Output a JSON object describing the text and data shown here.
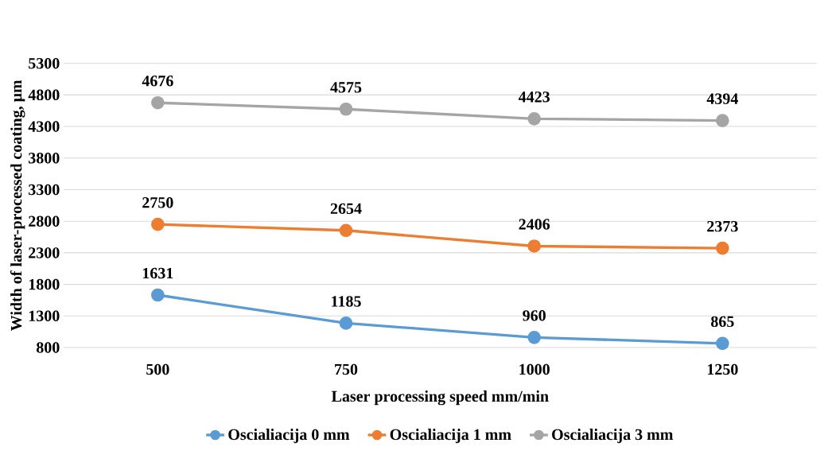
{
  "chart_data": {
    "type": "line",
    "xlabel": "Laser processing speed mm/min",
    "ylabel": "Width of laser-processed coating, μm",
    "categories": [
      "500",
      "750",
      "1000",
      "1250"
    ],
    "series": [
      {
        "name": "Oscialiacija 0 mm",
        "color": "#5b9bd5",
        "values": [
          1631,
          1185,
          960,
          865
        ]
      },
      {
        "name": "Oscialiacija 1 mm",
        "color": "#ed7d31",
        "values": [
          2750,
          2654,
          2406,
          2373
        ]
      },
      {
        "name": "Oscialiacija 3 mm",
        "color": "#a5a5a5",
        "values": [
          4676,
          4575,
          4423,
          4394
        ]
      }
    ],
    "ylim": [
      800,
      5300
    ],
    "yticks": [
      800,
      1300,
      1800,
      2300,
      2800,
      3300,
      3800,
      4300,
      4800,
      5300
    ],
    "grid": "y",
    "legend": "bottom",
    "marker": "circle",
    "line_style": "solid",
    "data_labels": true
  }
}
